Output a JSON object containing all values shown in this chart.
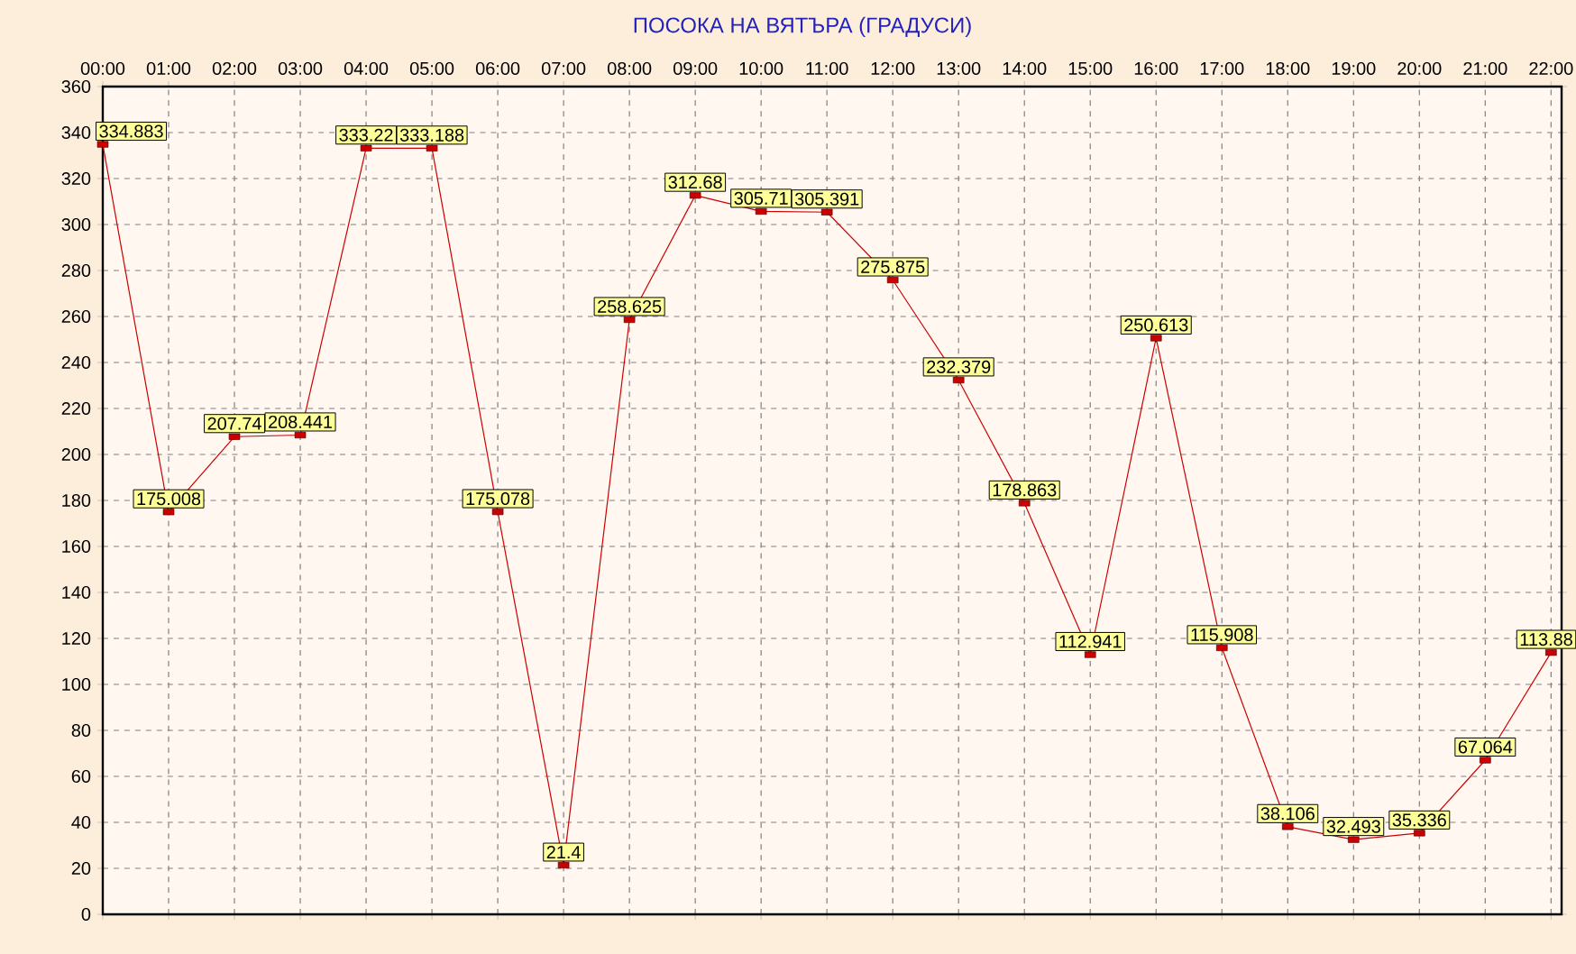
{
  "chart_data": {
    "type": "line",
    "title": "ПОСОКА НА ВЯТЪРА    (ГРАДУСИ)",
    "categories": [
      "00:00",
      "01:00",
      "02:00",
      "03:00",
      "04:00",
      "05:00",
      "06:00",
      "07:00",
      "08:00",
      "09:00",
      "10:00",
      "11:00",
      "12:00",
      "13:00",
      "14:00",
      "15:00",
      "16:00",
      "17:00",
      "18:00",
      "19:00",
      "20:00",
      "21:00",
      "22:00"
    ],
    "series": [
      {
        "color": "#cc0000",
        "values": [
          334.883,
          175.008,
          207.74,
          208.441,
          333.22,
          333.188,
          175.078,
          21.4,
          258.625,
          312.68,
          305.71,
          305.391,
          275.875,
          232.379,
          178.863,
          112.941,
          250.613,
          115.908,
          38.106,
          32.493,
          35.336,
          67.064,
          113.88
        ]
      }
    ],
    "ylim": [
      0,
      360
    ],
    "yticks": [
      0,
      20,
      40,
      60,
      80,
      100,
      120,
      140,
      160,
      180,
      200,
      220,
      240,
      260,
      280,
      300,
      320,
      340,
      360
    ],
    "grid": true,
    "marker": "square",
    "line_style": "solid",
    "data_labels": true
  }
}
